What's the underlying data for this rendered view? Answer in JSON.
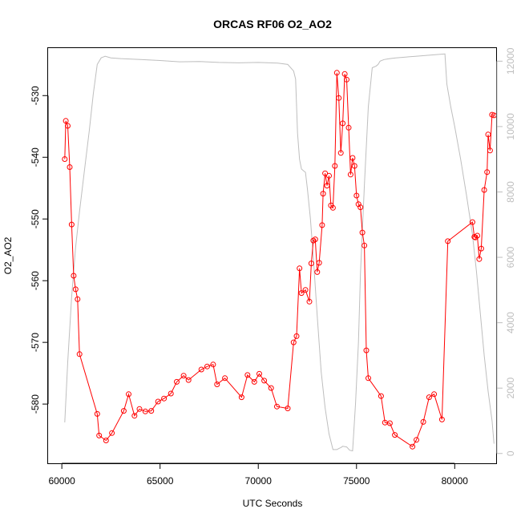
{
  "chart_data": {
    "type": "line",
    "title": "ORCAS RF06 O2_AO2",
    "xlabel": "UTC Seconds",
    "ylabel": "O2_AO2",
    "y2label": "",
    "xlim": [
      59300,
      82150
    ],
    "ylim": [
      -589.6,
      -522.3
    ],
    "y2lim": [
      -300,
      12400
    ],
    "x_ticks": [
      60000,
      65000,
      70000,
      75000,
      80000
    ],
    "y_ticks": [
      -580,
      -570,
      -560,
      -550,
      -540,
      -530
    ],
    "y2_ticks": [
      0,
      2000,
      4000,
      6000,
      8000,
      10000,
      12000
    ],
    "grid": false,
    "legend": "none",
    "colors": {
      "primary": "#ff0000",
      "secondary": "#bebebe",
      "frame": "#000000"
    },
    "series": [
      {
        "axis": "left",
        "style": "line+points",
        "color": "#ff0000",
        "x": [
          60150,
          60200,
          60300,
          60400,
          60500,
          60600,
          60700,
          60800,
          60900,
          61800,
          61900,
          62250,
          62550,
          63150,
          63400,
          63700,
          63950,
          64250,
          64550,
          64900,
          65200,
          65550,
          65850,
          66200,
          66450,
          67100,
          67400,
          67700,
          67900,
          68300,
          69150,
          69450,
          69800,
          70050,
          70300,
          70650,
          70950,
          71500,
          71800,
          71950,
          72100,
          72200,
          72400,
          72600,
          72700,
          72800,
          72900,
          73000,
          73100,
          73250,
          73300,
          73400,
          73500,
          73600,
          73700,
          73800,
          73900,
          74000,
          74100,
          74200,
          74300,
          74400,
          74500,
          74600,
          74700,
          74800,
          74900,
          75000,
          75100,
          75200,
          75300,
          75400,
          75500,
          75600,
          76250,
          76450,
          76700,
          76950,
          77850,
          78050,
          78400,
          78700,
          78950,
          79350,
          79650,
          80900,
          81000,
          81050,
          81150,
          81250,
          81350,
          81500,
          81650,
          81700,
          81800,
          81900,
          82000
        ],
        "y": [
          -540.3,
          -534.1,
          -534.9,
          -541.6,
          -550.9,
          -559.2,
          -561.4,
          -563.0,
          -571.9,
          -581.6,
          -585.1,
          -585.9,
          -584.7,
          -581.1,
          -578.4,
          -581.9,
          -580.8,
          -581.2,
          -581.1,
          -579.6,
          -579.1,
          -578.3,
          -576.4,
          -575.4,
          -576.1,
          -574.4,
          -573.9,
          -573.6,
          -576.8,
          -575.8,
          -578.9,
          -575.3,
          -576.4,
          -575.1,
          -576.2,
          -577.4,
          -580.4,
          -580.7,
          -570.0,
          -569.0,
          -558.0,
          -562.0,
          -561.5,
          -563.4,
          -557.2,
          -553.5,
          -553.3,
          -558.6,
          -557.1,
          -551.0,
          -545.9,
          -542.6,
          -544.6,
          -543.0,
          -547.8,
          -548.2,
          -541.4,
          -526.3,
          -530.4,
          -539.3,
          -534.5,
          -526.5,
          -527.4,
          -535.2,
          -542.8,
          -540.1,
          -541.4,
          -546.2,
          -547.6,
          -548.1,
          -552.2,
          -554.3,
          -571.3,
          -575.8,
          -578.7,
          -583.0,
          -583.1,
          -585.0,
          -586.9,
          -585.8,
          -582.9,
          -578.9,
          -578.4,
          -582.5,
          -553.6,
          -550.5,
          -552.9,
          -553.0,
          -552.7,
          -556.5,
          -554.8,
          -545.3,
          -542.4,
          -536.3,
          -538.9,
          -533.1,
          -533.2
        ]
      },
      {
        "axis": "right",
        "style": "line",
        "color": "#bebebe",
        "x": [
          60150,
          60300,
          60500,
          60700,
          60900,
          61100,
          61400,
          61600,
          61800,
          62000,
          62200,
          62500,
          63000,
          64000,
          65000,
          66000,
          67000,
          68000,
          69000,
          70000,
          71000,
          71500,
          71800,
          71900,
          72000,
          72100,
          72200,
          72300,
          72400,
          72500,
          72650,
          72800,
          73000,
          73200,
          73400,
          73600,
          73800,
          74000,
          74100,
          74200,
          74300,
          74500,
          74650,
          74800,
          74950,
          75100,
          75200,
          75400,
          75600,
          75800,
          76000,
          76100,
          76200,
          76400,
          76700,
          77000,
          78000,
          79000,
          79500,
          79600,
          79800,
          80000,
          80300,
          80600,
          80900,
          81100,
          81300,
          81500,
          81700,
          81900,
          82000
        ],
        "y": [
          950,
          2800,
          4800,
          6300,
          7400,
          8400,
          9900,
          11000,
          11900,
          12100,
          12150,
          12100,
          12080,
          12050,
          12020,
          11980,
          11990,
          11960,
          11950,
          11960,
          11940,
          11900,
          11700,
          11450,
          9800,
          9000,
          8700,
          8650,
          8600,
          8100,
          7200,
          6000,
          4200,
          2500,
          1400,
          600,
          120,
          120,
          150,
          180,
          220,
          200,
          100,
          80,
          1500,
          3400,
          5500,
          8200,
          10600,
          11800,
          11850,
          11900,
          12000,
          12050,
          12080,
          12100,
          12150,
          12200,
          12220,
          11300,
          10600,
          10000,
          9000,
          7900,
          6700,
          5600,
          4300,
          3000,
          1900,
          1000,
          300
        ]
      }
    ]
  }
}
